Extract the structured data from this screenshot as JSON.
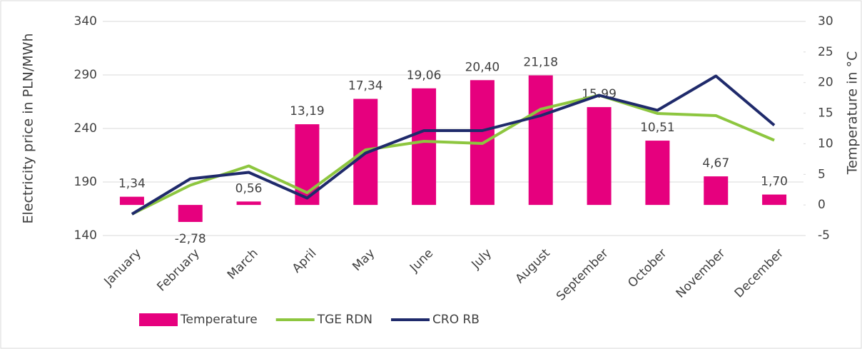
{
  "chart_data": {
    "type": "bar",
    "ylabel": "Electricity price in PLN/MWh",
    "y2label": "Temperature in °C",
    "categories": [
      "January",
      "February",
      "March",
      "April",
      "May",
      "June",
      "July",
      "August",
      "September",
      "October",
      "November",
      "December"
    ],
    "series": [
      {
        "name": "Temperature",
        "type": "bar",
        "axis": "y2",
        "color": "#e6007e",
        "values": [
          1.34,
          -2.78,
          0.56,
          13.19,
          17.34,
          19.06,
          20.4,
          21.18,
          15.99,
          10.51,
          4.67,
          1.7
        ],
        "value_labels": [
          "1,34",
          "-2,78",
          "0,56",
          "13,19",
          "17,34",
          "19,06",
          "20,40",
          "21,18",
          "15.99",
          "10,51",
          "4,67",
          "1,70"
        ]
      },
      {
        "name": "TGE RDN",
        "type": "line",
        "color": "#8dc63f",
        "values": [
          160,
          187,
          205,
          180,
          220,
          228,
          226,
          258,
          271,
          254,
          252,
          229
        ]
      },
      {
        "name": "CRO RB",
        "type": "line",
        "color": "#1f2a6b",
        "values": [
          160,
          193,
          199,
          175,
          217,
          238,
          238,
          252,
          271,
          257,
          289,
          243
        ]
      }
    ],
    "ylim": [
      140,
      340
    ],
    "yticks": [
      140,
      190,
      240,
      290,
      340
    ],
    "y2lim": [
      -5,
      30
    ],
    "y2ticks": [
      -5,
      0,
      5,
      10,
      15,
      20,
      25,
      30
    ],
    "grid": true,
    "legend": "bottom"
  }
}
